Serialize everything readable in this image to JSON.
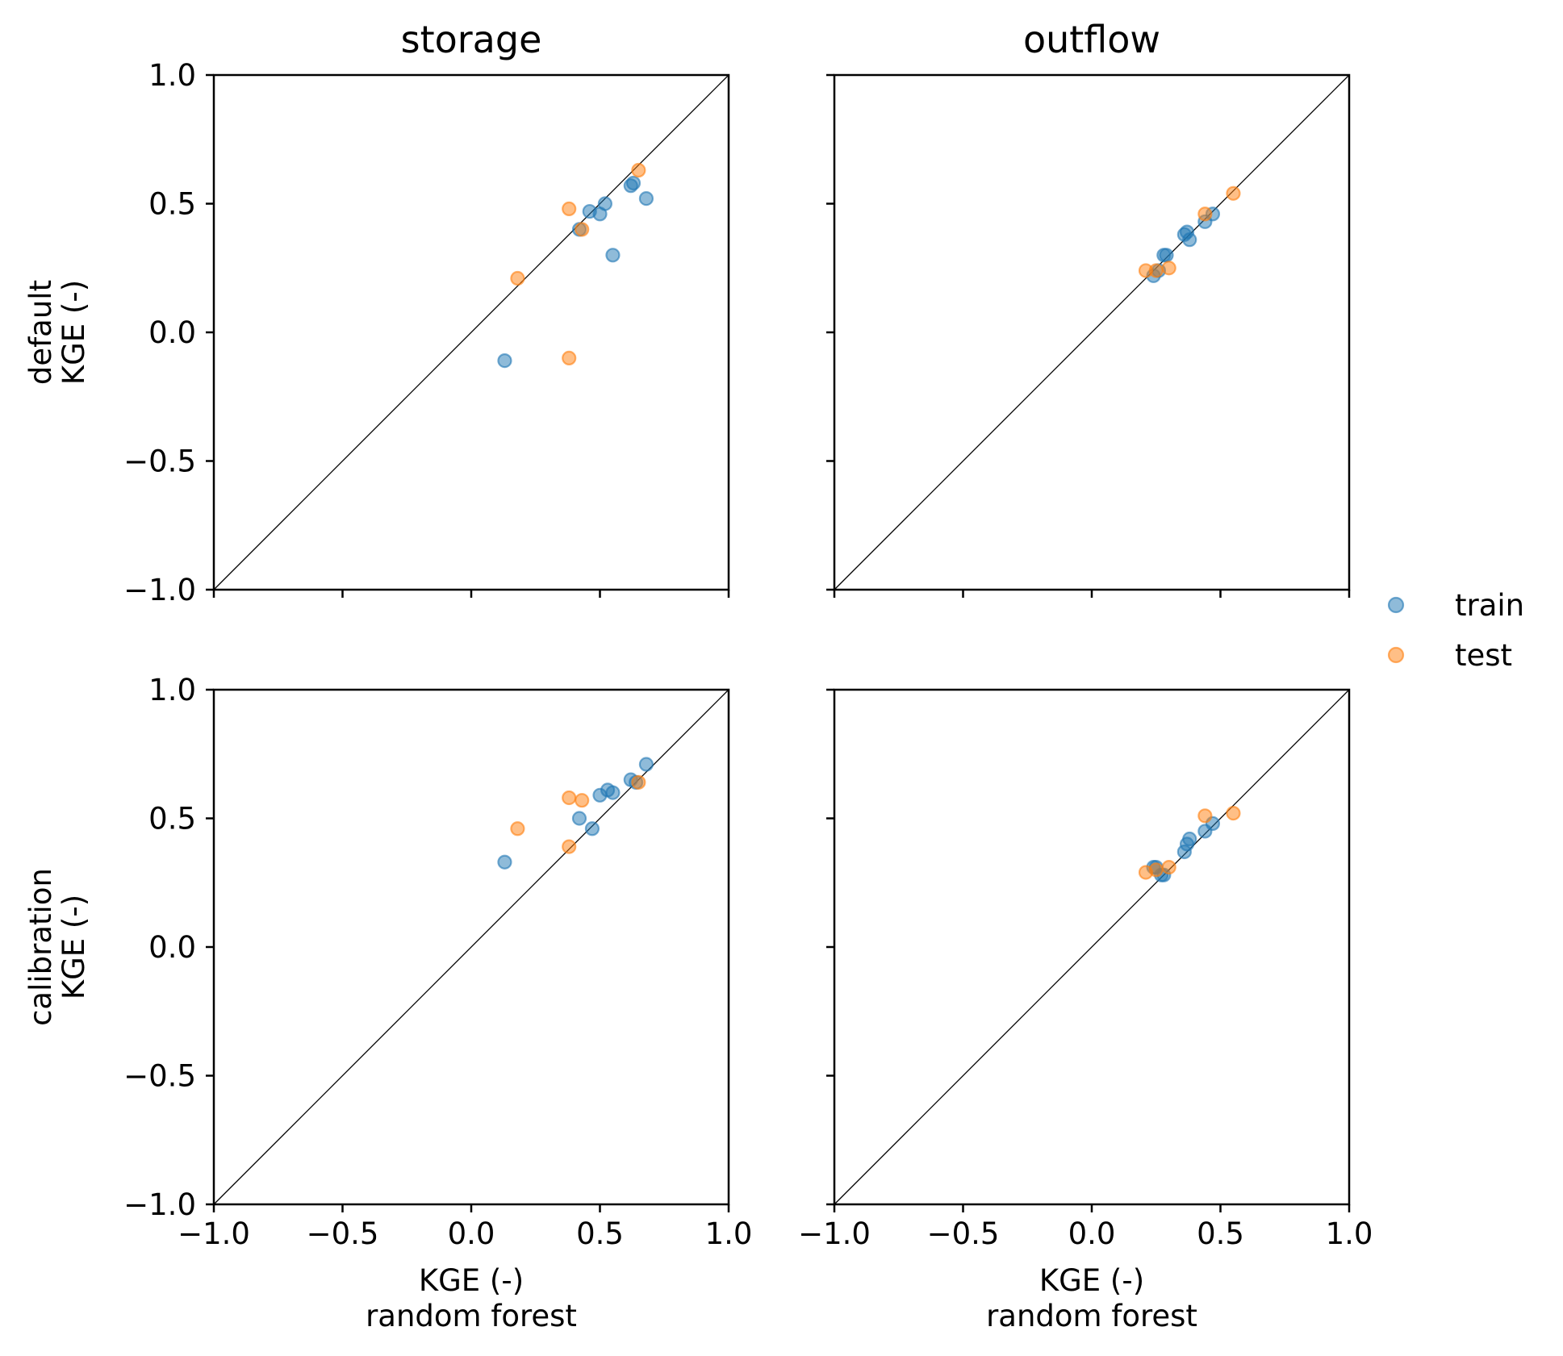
{
  "chart_data": {
    "type": "scatter",
    "column_titles": [
      "storage",
      "outflow"
    ],
    "row_labels": [
      [
        "default",
        "KGE (-)"
      ],
      [
        "calibration",
        "KGE (-)"
      ]
    ],
    "xlabel": [
      "KGE (-)",
      "random forest"
    ],
    "xlim": [
      -1.0,
      1.0
    ],
    "ylim": [
      -1.0,
      1.0
    ],
    "xticks": [
      -1.0,
      -0.5,
      0.0,
      0.5,
      1.0
    ],
    "yticks": [
      -1.0,
      -0.5,
      0.0,
      0.5,
      1.0
    ],
    "tick_labels": [
      "−1.0",
      "−0.5",
      "0.0",
      "0.5",
      "1.0"
    ],
    "reference_line": "1:1",
    "grid": false,
    "legend": {
      "placement": "right-center",
      "entries": [
        {
          "name": "train",
          "color": "#1f77b4"
        },
        {
          "name": "test",
          "color": "#ff7f0e"
        }
      ]
    },
    "panels": [
      {
        "row": "default",
        "col": "storage",
        "series": [
          {
            "name": "train",
            "points": [
              [
                0.13,
                -0.11
              ],
              [
                0.42,
                0.4
              ],
              [
                0.46,
                0.47
              ],
              [
                0.5,
                0.46
              ],
              [
                0.52,
                0.5
              ],
              [
                0.55,
                0.3
              ],
              [
                0.62,
                0.57
              ],
              [
                0.63,
                0.58
              ],
              [
                0.68,
                0.52
              ]
            ]
          },
          {
            "name": "test",
            "points": [
              [
                0.18,
                0.21
              ],
              [
                0.38,
                0.48
              ],
              [
                0.38,
                -0.1
              ],
              [
                0.43,
                0.4
              ],
              [
                0.65,
                0.63
              ]
            ]
          }
        ]
      },
      {
        "row": "default",
        "col": "outflow",
        "series": [
          {
            "name": "train",
            "points": [
              [
                0.24,
                0.22
              ],
              [
                0.26,
                0.24
              ],
              [
                0.28,
                0.3
              ],
              [
                0.29,
                0.3
              ],
              [
                0.36,
                0.38
              ],
              [
                0.37,
                0.39
              ],
              [
                0.38,
                0.36
              ],
              [
                0.44,
                0.43
              ],
              [
                0.47,
                0.46
              ]
            ]
          },
          {
            "name": "test",
            "points": [
              [
                0.21,
                0.24
              ],
              [
                0.25,
                0.24
              ],
              [
                0.3,
                0.25
              ],
              [
                0.44,
                0.46
              ],
              [
                0.55,
                0.54
              ]
            ]
          }
        ]
      },
      {
        "row": "calibration",
        "col": "storage",
        "series": [
          {
            "name": "train",
            "points": [
              [
                0.13,
                0.33
              ],
              [
                0.42,
                0.5
              ],
              [
                0.47,
                0.46
              ],
              [
                0.5,
                0.59
              ],
              [
                0.53,
                0.61
              ],
              [
                0.55,
                0.6
              ],
              [
                0.62,
                0.65
              ],
              [
                0.64,
                0.64
              ],
              [
                0.68,
                0.71
              ]
            ]
          },
          {
            "name": "test",
            "points": [
              [
                0.18,
                0.46
              ],
              [
                0.38,
                0.58
              ],
              [
                0.38,
                0.39
              ],
              [
                0.43,
                0.57
              ],
              [
                0.65,
                0.64
              ]
            ]
          }
        ]
      },
      {
        "row": "calibration",
        "col": "outflow",
        "series": [
          {
            "name": "train",
            "points": [
              [
                0.24,
                0.31
              ],
              [
                0.25,
                0.31
              ],
              [
                0.27,
                0.28
              ],
              [
                0.28,
                0.28
              ],
              [
                0.36,
                0.37
              ],
              [
                0.37,
                0.4
              ],
              [
                0.38,
                0.42
              ],
              [
                0.44,
                0.45
              ],
              [
                0.47,
                0.48
              ]
            ]
          },
          {
            "name": "test",
            "points": [
              [
                0.21,
                0.29
              ],
              [
                0.25,
                0.3
              ],
              [
                0.3,
                0.31
              ],
              [
                0.44,
                0.51
              ],
              [
                0.55,
                0.52
              ]
            ]
          }
        ]
      }
    ]
  }
}
